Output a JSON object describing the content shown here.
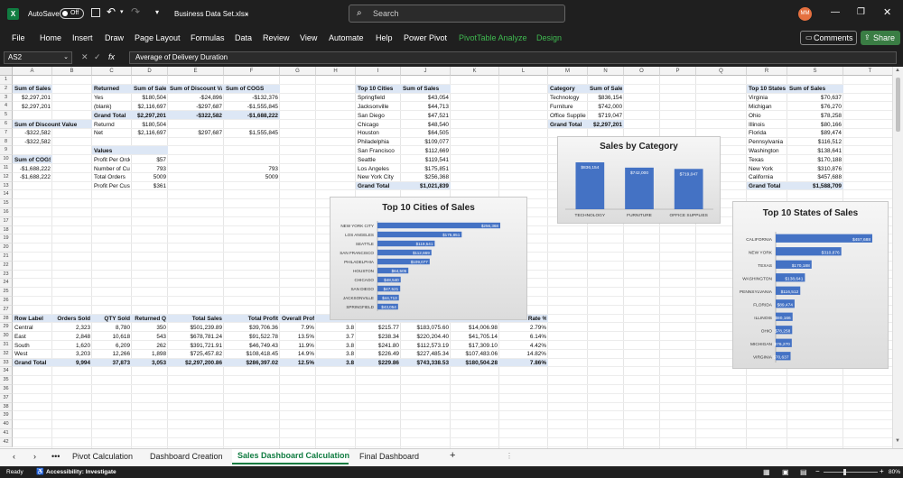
{
  "titlebar": {
    "autosave_label": "AutoSave",
    "autosave_state": "Off",
    "filename": "Business Data Set.xlsx",
    "search_placeholder": "Search",
    "avatar_initials": "MM"
  },
  "ribbon": {
    "tabs": [
      "File",
      "Home",
      "Insert",
      "Draw",
      "Page Layout",
      "Formulas",
      "Data",
      "Review",
      "View",
      "Automate",
      "Help",
      "Power Pivot"
    ],
    "context_tabs": [
      "PivotTable Analyze",
      "Design"
    ],
    "comments_label": "Comments",
    "share_label": "Share"
  },
  "formula_bar": {
    "name_box": "AS2",
    "fx": "fx",
    "content": "Average of Delivery Duration"
  },
  "columns": [
    "A",
    "B",
    "C",
    "D",
    "E",
    "F",
    "G",
    "H",
    "I",
    "J",
    "K",
    "L",
    "M",
    "N",
    "O",
    "P",
    "Q",
    "R",
    "S",
    "T"
  ],
  "rows": [
    "1",
    "2",
    "3",
    "4",
    "5",
    "6",
    "7",
    "8",
    "9",
    "10",
    "11",
    "12",
    "13",
    "14",
    "15",
    "16",
    "17",
    "18",
    "19",
    "20",
    "21",
    "22",
    "23",
    "24",
    "25",
    "26",
    "27",
    "28",
    "29",
    "30",
    "31",
    "32",
    "33",
    "34",
    "35",
    "36",
    "37",
    "38",
    "39",
    "40",
    "41",
    "42"
  ],
  "sheet": {
    "sum_sales_header": "Sum of Sales",
    "sum_sales_vals": [
      "$2,297,201",
      "$2,297,201"
    ],
    "sum_discount_header": "Sum of Discount Value",
    "sum_discount_vals": [
      "-$322,582",
      "-$322,582"
    ],
    "sum_cogs_header": "Sum of COGS",
    "sum_cogs_vals": [
      "-$1,688,222",
      "-$1,688,222"
    ],
    "returned": {
      "headers": [
        "Returned",
        "Sum of Sales",
        "Sum of Discount Value",
        "Sum of COGS"
      ],
      "rows": [
        [
          "Yes",
          "$180,504",
          "-$24,896",
          "-$132,376"
        ],
        [
          "(blank)",
          "$2,116,697",
          "-$297,687",
          "-$1,555,845"
        ]
      ],
      "total": [
        "Grand Total",
        "$2,297,201",
        "-$322,582",
        "-$1,688,222"
      ],
      "extra": [
        [
          "Returnd",
          "$180,504",
          "",
          ""
        ],
        [
          "Net",
          "$2,116,697",
          "$297,687",
          "$1,555,845"
        ]
      ]
    },
    "values_block": {
      "header": "Values",
      "rows": [
        [
          "Profit Per Orders",
          "$57",
          ""
        ],
        [
          "Number of Customers",
          "793",
          "793"
        ],
        [
          "Total Orders",
          "5009",
          "5009"
        ],
        [
          "Profit Per Customer",
          "$361",
          ""
        ]
      ]
    },
    "top_cities": {
      "headers": [
        "Top 10 Cities",
        "Sum of Sales"
      ],
      "rows": [
        [
          "Springfield",
          "$43,054"
        ],
        [
          "Jacksonville",
          "$44,713"
        ],
        [
          "San Diego",
          "$47,521"
        ],
        [
          "Chicago",
          "$48,540"
        ],
        [
          "Houston",
          "$64,505"
        ],
        [
          "Philadelphia",
          "$109,077"
        ],
        [
          "San Francisco",
          "$112,669"
        ],
        [
          "Seattle",
          "$119,541"
        ],
        [
          "Los Angeles",
          "$175,851"
        ],
        [
          "New York City",
          "$256,368"
        ]
      ],
      "total": [
        "Grand Total",
        "$1,021,839"
      ]
    },
    "category": {
      "headers": [
        "Category",
        "Sum of Sales"
      ],
      "rows": [
        [
          "Technology",
          "$836,154"
        ],
        [
          "Furniture",
          "$742,000"
        ],
        [
          "Office Supplies",
          "$719,047"
        ]
      ],
      "total": [
        "Grand Total",
        "$2,297,201"
      ]
    },
    "top_states": {
      "headers": [
        "Top 10 States",
        "Sum of Sales"
      ],
      "rows": [
        [
          "Virginia",
          "$70,637"
        ],
        [
          "Michigan",
          "$76,270"
        ],
        [
          "Ohio",
          "$78,258"
        ],
        [
          "Illinois",
          "$80,166"
        ],
        [
          "Florida",
          "$89,474"
        ],
        [
          "Pennsylvania",
          "$116,512"
        ],
        [
          "Washington",
          "$138,641"
        ],
        [
          "Texas",
          "$170,188"
        ],
        [
          "New York",
          "$310,876"
        ],
        [
          "California",
          "$457,688"
        ]
      ],
      "total": [
        "Grand Total",
        "$1,588,709"
      ]
    },
    "region": {
      "headers": [
        "Row Label",
        "Orders Sold",
        "QTY Sold",
        "Returned Q",
        "Total Sales",
        "Total Profit",
        "Overall Profit Margin",
        "AOS",
        "AOV",
        "Weekend Sal",
        "Returned Amount",
        "Returned Rate %"
      ],
      "rows": [
        [
          "Central",
          "2,323",
          "8,780",
          "350",
          "$501,239.89",
          "$39,706.36",
          "7.9%",
          "3.8",
          "$215.77",
          "$183,075.60",
          "$14,006.98",
          "2.79%"
        ],
        [
          "East",
          "2,848",
          "10,618",
          "543",
          "$678,781.24",
          "$91,522.78",
          "13.5%",
          "3.7",
          "$238.34",
          "$220,204.40",
          "$41,705.14",
          "6.14%"
        ],
        [
          "South",
          "1,620",
          "6,209",
          "262",
          "$391,721.91",
          "$46,749.43",
          "11.9%",
          "3.8",
          "$241.80",
          "$112,573.19",
          "$17,309.10",
          "4.42%"
        ],
        [
          "West",
          "3,203",
          "12,266",
          "1,898",
          "$725,457.82",
          "$108,418.45",
          "14.9%",
          "3.8",
          "$226.49",
          "$227,485.34",
          "$107,483.06",
          "14.82%"
        ]
      ],
      "total": [
        "Grand Total",
        "9,994",
        "37,873",
        "3,053",
        "$2,297,200.86",
        "$286,397.02",
        "12.5%",
        "3.8",
        "$229.86",
        "$743,338.53",
        "$180,504.28",
        "7.86%"
      ]
    }
  },
  "chart_data": [
    {
      "type": "bar",
      "orientation": "horizontal",
      "title": "Top 10 Cities of Sales",
      "categories": [
        "NEW YORK CITY",
        "LOS ANGELES",
        "SEATTLE",
        "SAN FRANCISCO",
        "PHILADELPHIA",
        "HOUSTON",
        "CHICAGO",
        "SAN DIEGO",
        "JACKSONVILLE",
        "SPRINGFIELD"
      ],
      "values": [
        256368,
        175851,
        119541,
        112669,
        109077,
        64505,
        48540,
        47521,
        44713,
        43054
      ],
      "labels": [
        "$256,368",
        "$175,851",
        "$119,541",
        "$112,669",
        "$109,077",
        "$64,505",
        "$48,540",
        "$47,521",
        "$44,713",
        "$43,054"
      ],
      "color": "#4472c4"
    },
    {
      "type": "bar",
      "orientation": "vertical",
      "title": "Sales by Category",
      "categories": [
        "TECHNOLOGY",
        "FURNITURE",
        "OFFICE SUPPLIES"
      ],
      "values": [
        836154,
        742000,
        719047
      ],
      "labels": [
        "$836,154",
        "$742,000",
        "$719,047"
      ],
      "color": "#4472c4"
    },
    {
      "type": "bar",
      "orientation": "horizontal",
      "title": "Top 10 States of Sales",
      "categories": [
        "CALIFORNIA",
        "NEW YORK",
        "TEXAS",
        "WASHINGTON",
        "PENNSYLVANIA",
        "FLORIDA",
        "ILLINOIS",
        "OHIO",
        "MICHIGAN",
        "VIRGINIA"
      ],
      "values": [
        457688,
        310876,
        170188,
        138641,
        116512,
        89474,
        80166,
        78258,
        76270,
        70637
      ],
      "labels": [
        "$457,688",
        "$310,876",
        "$170,188",
        "$138,641",
        "$116,512",
        "$89,474",
        "$80,166",
        "$78,258",
        "$76,270",
        "$70,637"
      ],
      "color": "#4472c4"
    }
  ],
  "sheet_tabs": {
    "tabs": [
      "Pivot Calculation",
      "Dashboard Creation",
      "Sales Dashboard Calculation",
      "Final Dashboard"
    ],
    "active": "Sales Dashboard Calculation",
    "more": "•••",
    "add": "+"
  },
  "status": {
    "ready": "Ready",
    "accessibility": "Accessibility: Investigate",
    "zoom": "80%"
  }
}
